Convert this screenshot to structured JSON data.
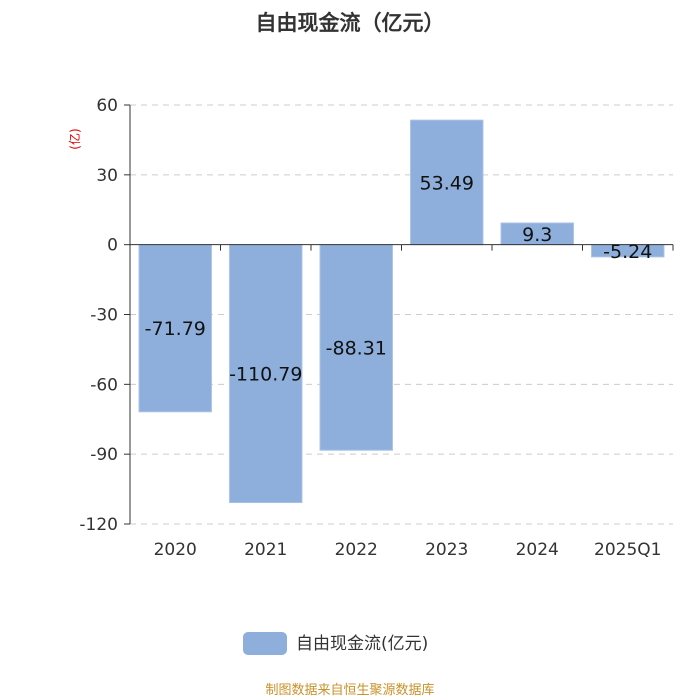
{
  "chart_data": {
    "type": "bar",
    "title": "自由现金流（亿元）",
    "unit_label": "(亿)",
    "categories": [
      "2020",
      "2021",
      "2022",
      "2023",
      "2024",
      "2025Q1"
    ],
    "series": [
      {
        "name": "自由现金流(亿元)",
        "values": [
          -71.79,
          -110.79,
          -88.31,
          53.49,
          9.3,
          -5.24
        ],
        "color": "#8eafdb"
      }
    ],
    "data_labels": [
      "-71.79",
      "-110.79",
      "-88.31",
      "53.49",
      "9.3",
      "-5.24"
    ],
    "ylim": [
      -120,
      60
    ],
    "yticks": [
      60,
      30,
      0,
      -30,
      -60,
      -90,
      -120
    ],
    "grid": true,
    "legend_position": "bottom-center"
  },
  "footer": {
    "source": "制图数据来自恒生聚源数据库"
  }
}
